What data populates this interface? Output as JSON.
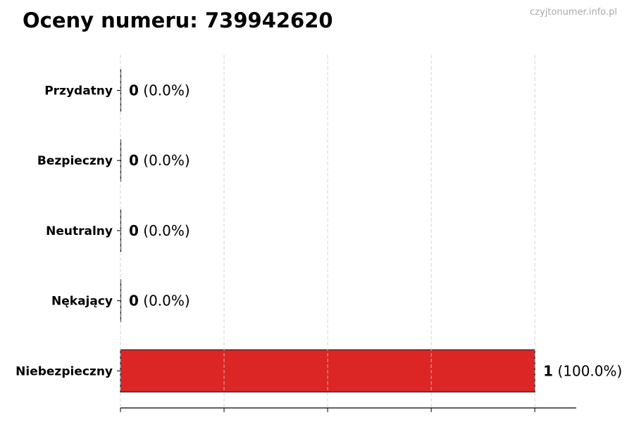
{
  "header": {
    "title": "Oceny numeru: 739942620",
    "watermark": "czyjtonumer.info.pl"
  },
  "chart_data": {
    "type": "bar",
    "orientation": "horizontal",
    "categories": [
      "Przydatny",
      "Bezpieczny",
      "Neutralny",
      "Nękający",
      "Niebezpieczny"
    ],
    "values": [
      0,
      0,
      0,
      0,
      1
    ],
    "labels": [
      {
        "count": "0",
        "pct": "(0.0%)"
      },
      {
        "count": "0",
        "pct": "(0.0%)"
      },
      {
        "count": "0",
        "pct": "(0.0%)"
      },
      {
        "count": "0",
        "pct": "(0.0%)"
      },
      {
        "count": "1",
        "pct": "(100.0%)"
      }
    ],
    "xlim": [
      0,
      1.1
    ],
    "xticks": [
      0,
      0.25,
      0.5,
      0.75,
      1
    ],
    "grid": "x-dashed",
    "bar_color": "#dc2626",
    "xlabel": "",
    "ylabel": ""
  }
}
